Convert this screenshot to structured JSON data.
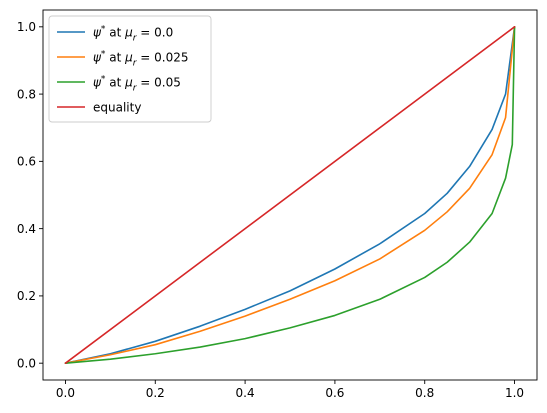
{
  "chart_data": {
    "type": "line",
    "title": "",
    "xlabel": "",
    "ylabel": "",
    "xlim": [
      -0.05,
      1.05
    ],
    "ylim": [
      -0.05,
      1.05
    ],
    "xticks": [
      0.0,
      0.2,
      0.4,
      0.6,
      0.8,
      1.0
    ],
    "yticks": [
      0.0,
      0.2,
      0.4,
      0.6,
      0.8,
      1.0
    ],
    "xtick_labels": [
      "0.0",
      "0.2",
      "0.4",
      "0.6",
      "0.8",
      "1.0"
    ],
    "ytick_labels": [
      "0.0",
      "0.2",
      "0.4",
      "0.6",
      "0.8",
      "1.0"
    ],
    "grid": false,
    "legend_position": "top-left",
    "series": [
      {
        "name": "ψ* at μr = 0.0",
        "legend_label": {
          "symbol": "ψ",
          "sup": "*",
          "mid": " at ",
          "param": "μ",
          "sub": "r",
          "tail": " = 0.0"
        },
        "color": "#1f77b4",
        "x": [
          0.0,
          0.1,
          0.2,
          0.3,
          0.4,
          0.5,
          0.6,
          0.7,
          0.8,
          0.85,
          0.9,
          0.95,
          0.98,
          1.0
        ],
        "y": [
          0.0,
          0.028,
          0.065,
          0.11,
          0.16,
          0.215,
          0.28,
          0.355,
          0.445,
          0.505,
          0.585,
          0.695,
          0.8,
          1.0
        ]
      },
      {
        "name": "ψ* at μr = 0.025",
        "legend_label": {
          "symbol": "ψ",
          "sup": "*",
          "mid": " at ",
          "param": "μ",
          "sub": "r",
          "tail": " = 0.025"
        },
        "color": "#ff7f0e",
        "x": [
          0.0,
          0.1,
          0.2,
          0.3,
          0.4,
          0.5,
          0.6,
          0.7,
          0.8,
          0.85,
          0.9,
          0.95,
          0.98,
          1.0
        ],
        "y": [
          0.0,
          0.025,
          0.055,
          0.095,
          0.14,
          0.19,
          0.245,
          0.31,
          0.395,
          0.45,
          0.52,
          0.62,
          0.73,
          1.0
        ]
      },
      {
        "name": "ψ* at μr = 0.05",
        "legend_label": {
          "symbol": "ψ",
          "sup": "*",
          "mid": " at ",
          "param": "μ",
          "sub": "r",
          "tail": " = 0.05"
        },
        "color": "#2ca02c",
        "x": [
          0.0,
          0.1,
          0.2,
          0.3,
          0.4,
          0.5,
          0.6,
          0.7,
          0.8,
          0.85,
          0.9,
          0.95,
          0.98,
          0.995,
          1.0
        ],
        "y": [
          0.0,
          0.012,
          0.028,
          0.048,
          0.073,
          0.105,
          0.142,
          0.19,
          0.255,
          0.3,
          0.36,
          0.445,
          0.55,
          0.65,
          1.0
        ]
      },
      {
        "name": "equality",
        "legend_label": {
          "symbol": "",
          "sup": "",
          "mid": "",
          "param": "",
          "sub": "",
          "tail": "equality"
        },
        "color": "#d62728",
        "x": [
          0.0,
          1.0
        ],
        "y": [
          0.0,
          1.0
        ]
      }
    ]
  }
}
